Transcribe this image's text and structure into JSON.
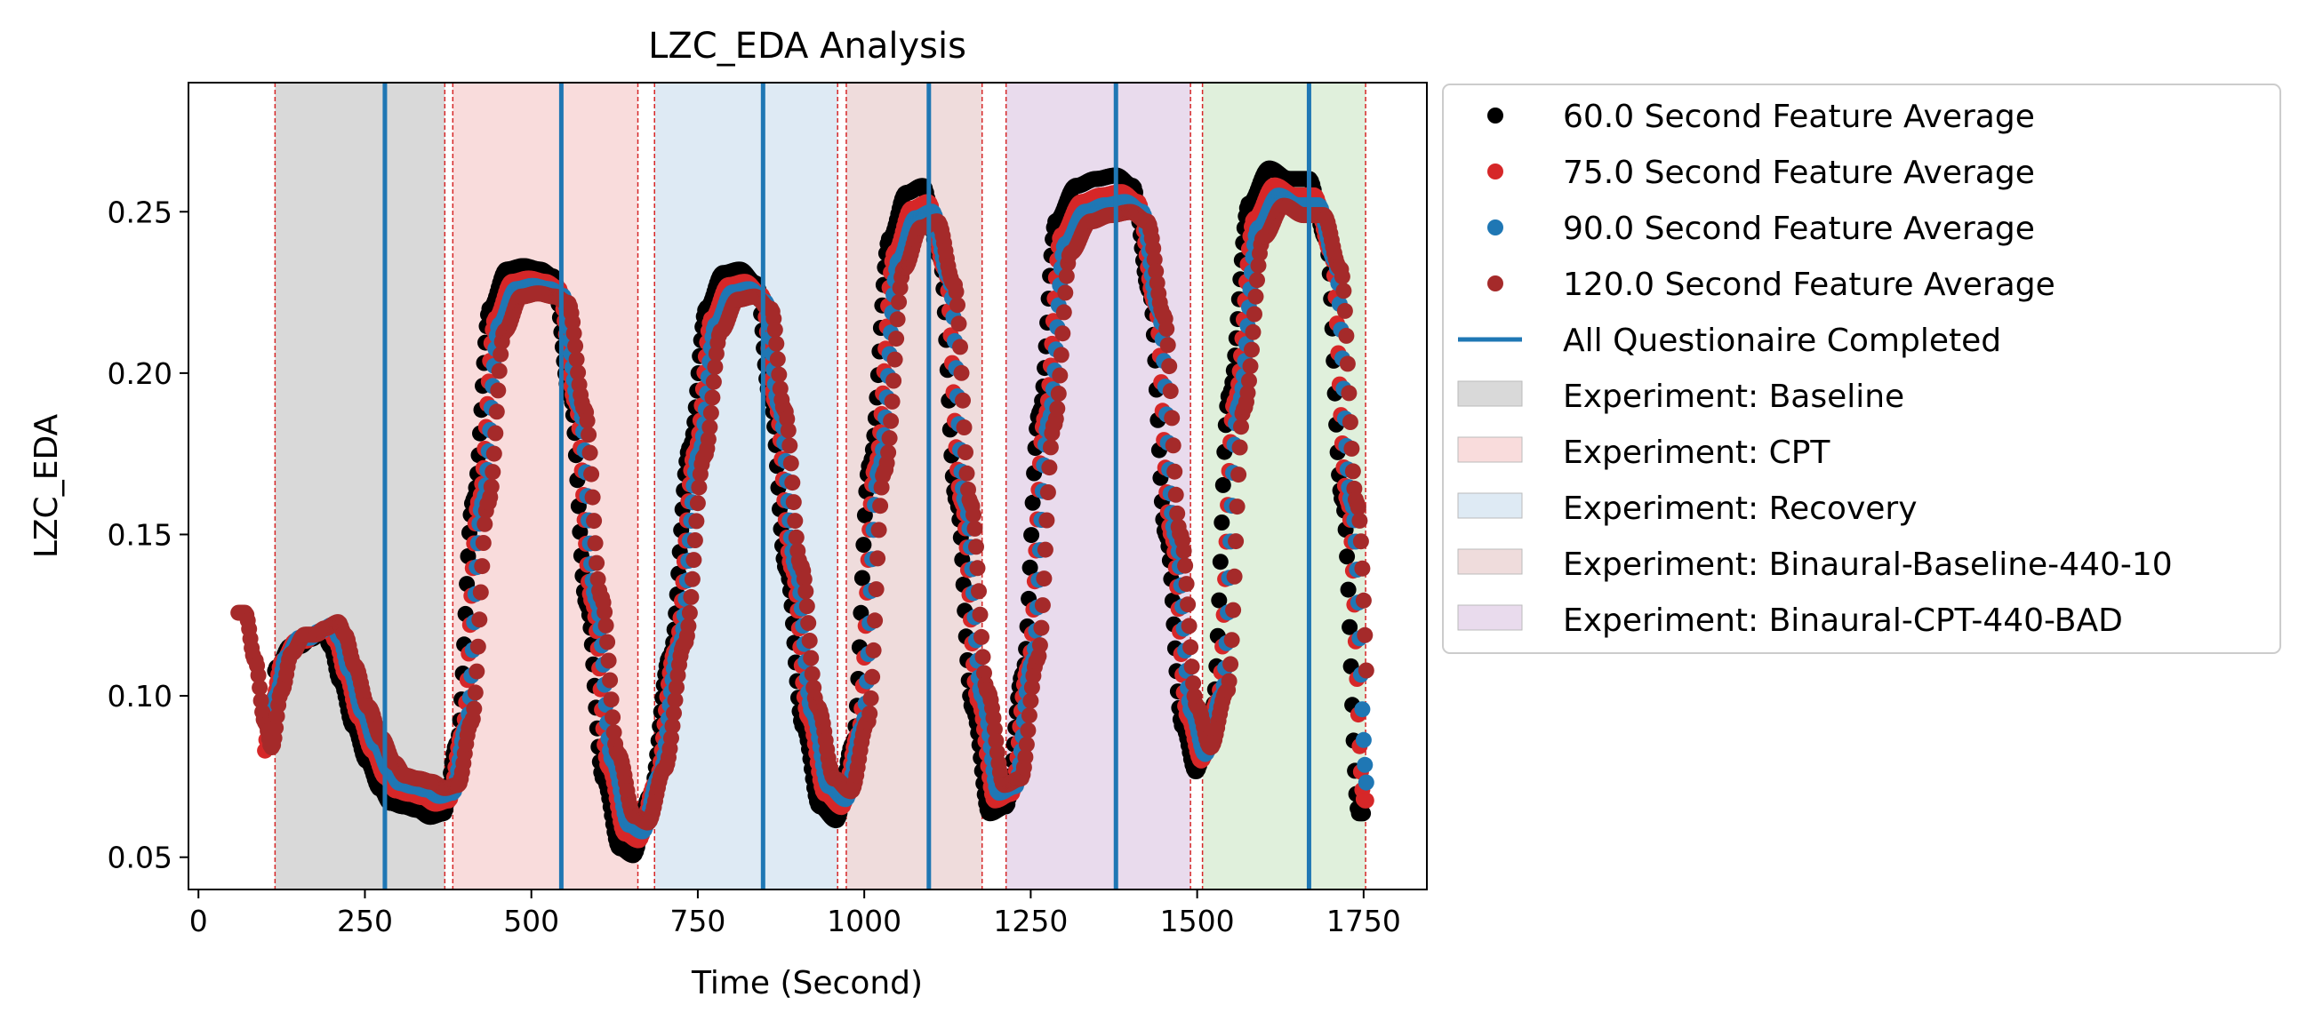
{
  "chart_data": {
    "type": "scatter",
    "title": "LZC_EDA Analysis",
    "xlabel": "Time (Second)",
    "ylabel": "LZC_EDA",
    "xlim": [
      -15,
      1845
    ],
    "ylim": [
      0.04,
      0.29
    ],
    "xticks": [
      0,
      250,
      500,
      750,
      1000,
      1250,
      1500,
      1750
    ],
    "yticks": [
      0.05,
      0.1,
      0.15,
      0.2,
      0.25
    ],
    "ytick_labels": [
      "0.05",
      "0.10",
      "0.15",
      "0.20",
      "0.25"
    ],
    "grid": false,
    "legend_position": "outside-right",
    "curve_keypoints": {
      "t": [
        60,
        75,
        90,
        100,
        115,
        130,
        150,
        165,
        180,
        200,
        210,
        225,
        245,
        265,
        285,
        300,
        320,
        340,
        360,
        380,
        400,
        425,
        450,
        475,
        500,
        525,
        545,
        570,
        595,
        620,
        645,
        665,
        690,
        720,
        750,
        775,
        800,
        825,
        850,
        870,
        895,
        920,
        945,
        970,
        995,
        1020,
        1050,
        1075,
        1100,
        1125,
        1150,
        1175,
        1200,
        1225,
        1250,
        1275,
        1300,
        1330,
        1360,
        1390,
        1415,
        1440,
        1465,
        1490,
        1510,
        1535,
        1560,
        1590,
        1620,
        1650,
        1680,
        1705,
        1730,
        1755
      ],
      "v": [
        0.125,
        0.11,
        0.09,
        0.082,
        0.1,
        0.112,
        0.118,
        0.118,
        0.12,
        0.122,
        0.118,
        0.108,
        0.095,
        0.085,
        0.077,
        0.073,
        0.072,
        0.071,
        0.069,
        0.07,
        0.09,
        0.16,
        0.215,
        0.226,
        0.227,
        0.226,
        0.224,
        0.19,
        0.13,
        0.08,
        0.06,
        0.058,
        0.075,
        0.115,
        0.175,
        0.215,
        0.225,
        0.226,
        0.222,
        0.19,
        0.14,
        0.095,
        0.072,
        0.068,
        0.09,
        0.17,
        0.235,
        0.248,
        0.25,
        0.23,
        0.16,
        0.1,
        0.07,
        0.072,
        0.11,
        0.185,
        0.24,
        0.25,
        0.252,
        0.253,
        0.25,
        0.22,
        0.15,
        0.095,
        0.082,
        0.1,
        0.19,
        0.245,
        0.255,
        0.252,
        0.252,
        0.235,
        0.16,
        0.07
      ]
    },
    "series": [
      {
        "name": "60.0 Second Feature Average",
        "color": "#000000",
        "lag": -12,
        "amp": 1.08,
        "t_start": 115,
        "t_end": 1750
      },
      {
        "name": "75.0 Second Feature Average",
        "color": "#d62728",
        "lag": -4,
        "amp": 1.03,
        "t_start": 100,
        "t_end": 1755
      },
      {
        "name": "90.0 Second Feature Average",
        "color": "#1f77b4",
        "lag": 2,
        "amp": 1.0,
        "t_start": 110,
        "t_end": 1755
      },
      {
        "name": "120.0 Second Feature Average",
        "color": "#a52a2a",
        "lag": 10,
        "amp": 0.97,
        "t_start": 60,
        "t_end": 1755
      }
    ],
    "questionnaire_lines": {
      "name": "All Questionaire Completed",
      "color": "#1f77b4",
      "x": [
        280,
        545,
        848,
        1097,
        1378,
        1668
      ]
    },
    "boundary_lines": {
      "color": "#d62728",
      "x": [
        115,
        370,
        382,
        660,
        685,
        960,
        973,
        1177,
        1213,
        1490,
        1508,
        1753
      ]
    },
    "regions": [
      {
        "name": "Experiment: Baseline",
        "x0": 115,
        "x1": 370,
        "color": "#d9d9d9"
      },
      {
        "name": "Experiment: CPT",
        "x0": 382,
        "x1": 660,
        "color": "#f9dcdc"
      },
      {
        "name": "Experiment: Recovery",
        "x0": 685,
        "x1": 960,
        "color": "#deeaf4"
      },
      {
        "name": "Experiment: Binaural-Baseline-440-10",
        "x0": 973,
        "x1": 1177,
        "color": "#efdcdc"
      },
      {
        "name": "Experiment: Binaural-CPT-440-BAD",
        "x0": 1213,
        "x1": 1490,
        "color": "#e9dbed"
      },
      {
        "name": "",
        "x0": 1508,
        "x1": 1753,
        "color": "#e0f0dc"
      }
    ]
  }
}
